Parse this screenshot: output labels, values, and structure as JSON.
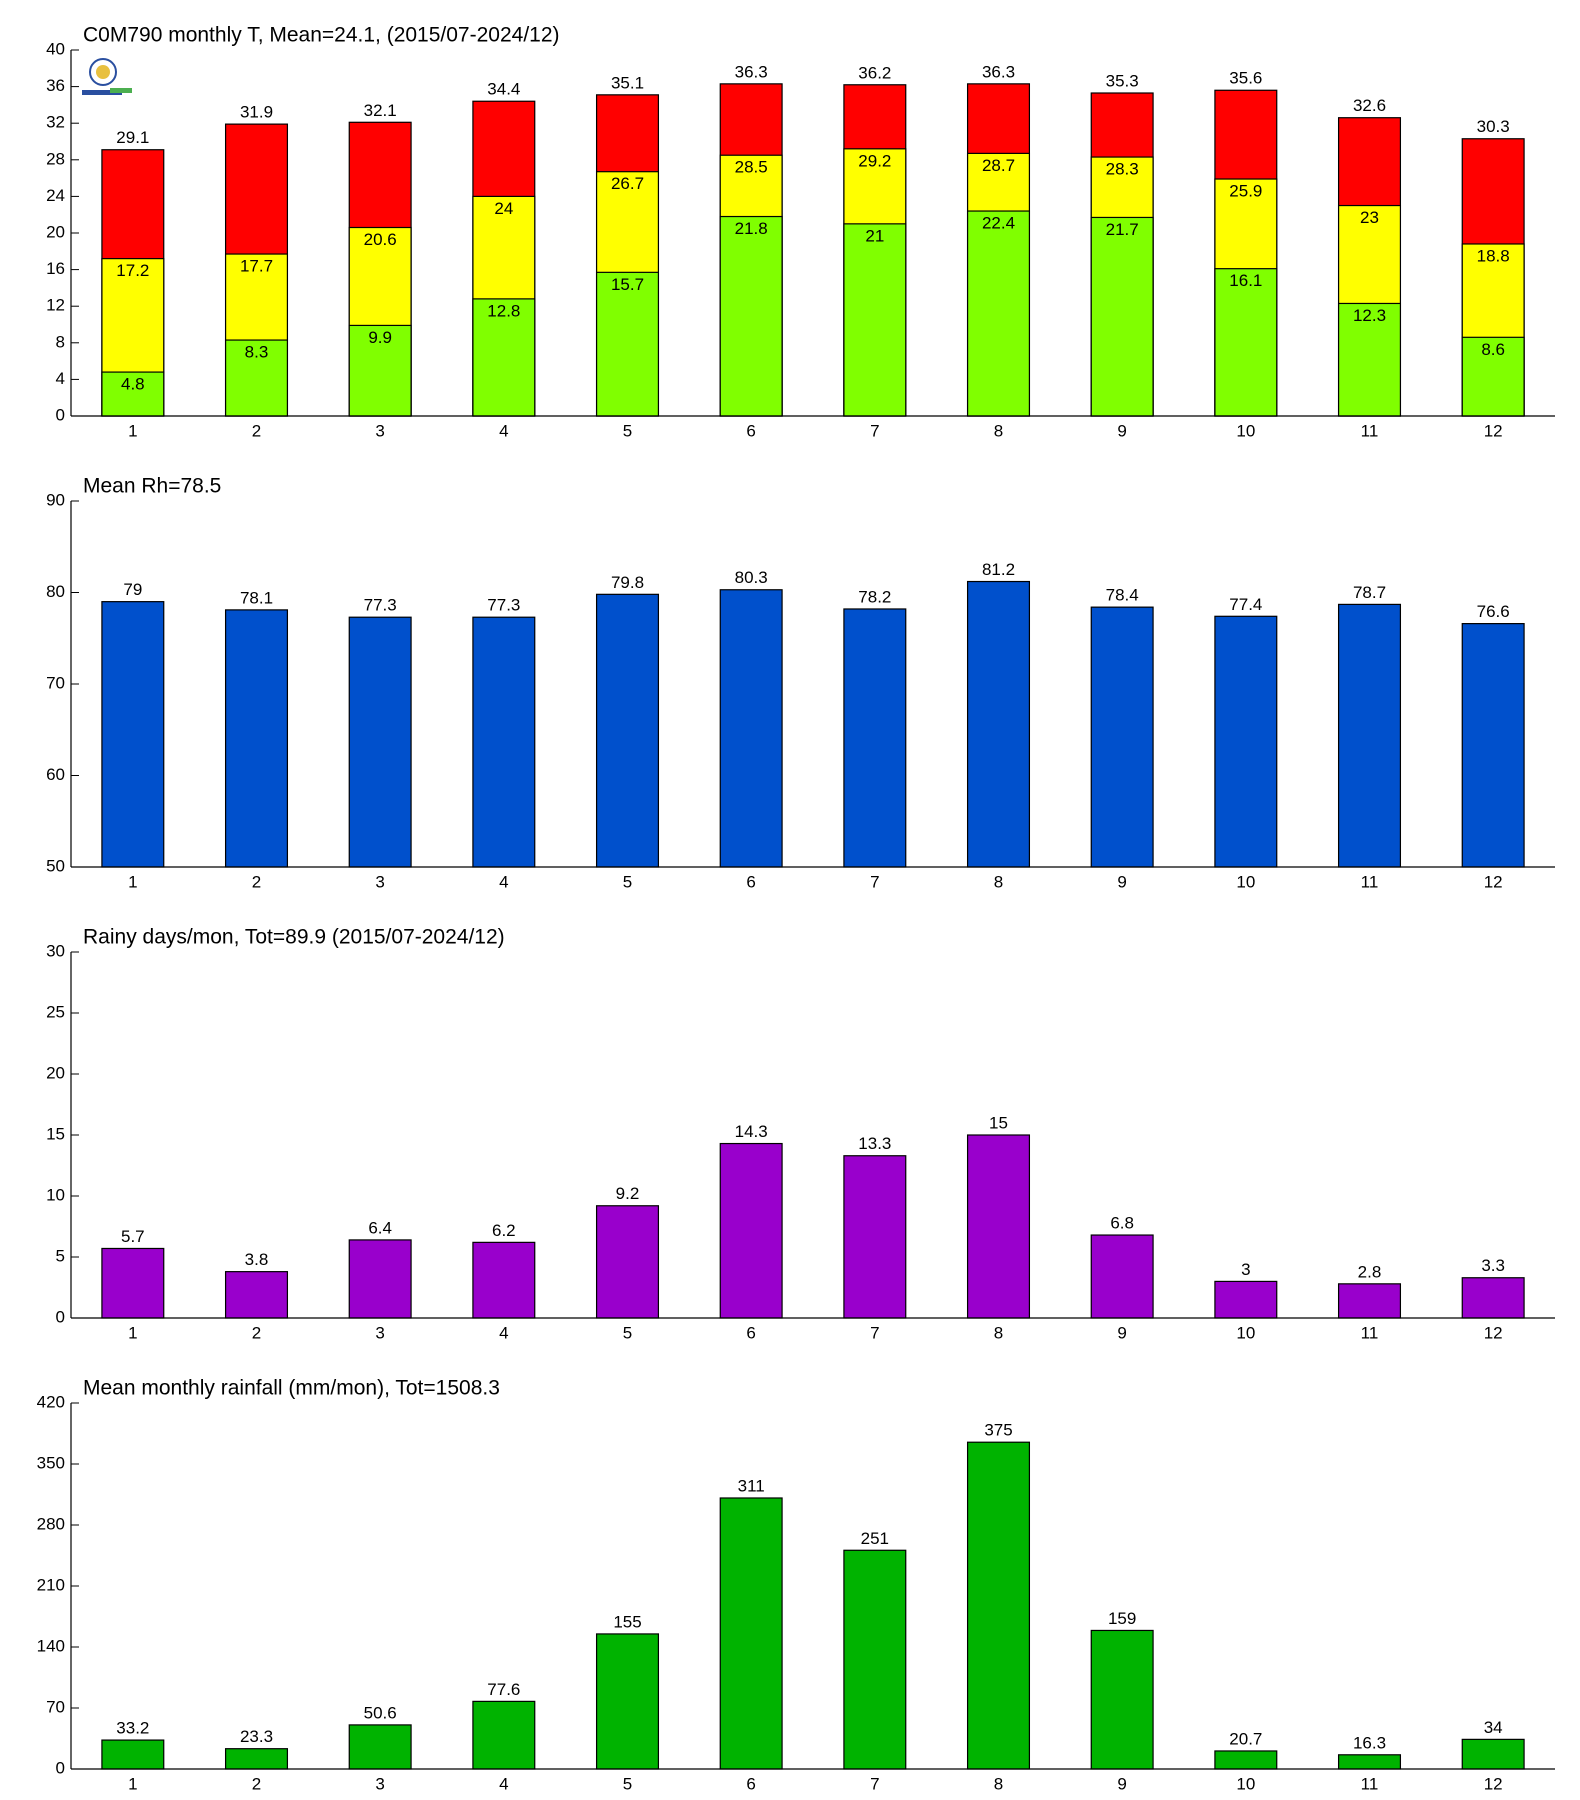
{
  "chart_data": [
    {
      "type": "bar",
      "title": "C0M790 monthly T, Mean=24.1, (2015/07-2024/12)",
      "categories": [
        1,
        2,
        3,
        4,
        5,
        6,
        7,
        8,
        9,
        10,
        11,
        12
      ],
      "series": [
        {
          "color": "#ff0000",
          "values": [
            29.1,
            31.9,
            32.1,
            34.4,
            35.1,
            36.3,
            36.2,
            36.3,
            35.3,
            35.6,
            32.6,
            30.3
          ]
        },
        {
          "color": "#ffff00",
          "values": [
            17.2,
            17.7,
            20.6,
            24,
            26.7,
            28.5,
            29.2,
            28.7,
            28.3,
            25.9,
            23,
            18.8
          ]
        },
        {
          "color": "#80ff00",
          "values": [
            4.8,
            8.3,
            9.9,
            12.8,
            15.7,
            21.8,
            21,
            22.4,
            21.7,
            16.1,
            12.3,
            8.6
          ]
        }
      ],
      "ylim": [
        0,
        40
      ],
      "yticks": [
        0,
        4,
        8,
        12,
        16,
        20,
        24,
        28,
        32,
        36,
        40
      ]
    },
    {
      "type": "bar",
      "title": "Mean Rh=78.5",
      "categories": [
        1,
        2,
        3,
        4,
        5,
        6,
        7,
        8,
        9,
        10,
        11,
        12
      ],
      "values": [
        79,
        78.1,
        77.3,
        77.3,
        79.8,
        80.3,
        78.2,
        81.2,
        78.4,
        77.4,
        78.7,
        76.6
      ],
      "color": "#0050cc",
      "ylim": [
        50,
        90
      ],
      "yticks": [
        50,
        60,
        70,
        80,
        90
      ]
    },
    {
      "type": "bar",
      "title": "Rainy days/mon, Tot=89.9 (2015/07-2024/12)",
      "categories": [
        1,
        2,
        3,
        4,
        5,
        6,
        7,
        8,
        9,
        10,
        11,
        12
      ],
      "values": [
        5.7,
        3.8,
        6.4,
        6.2,
        9.2,
        14.3,
        13.3,
        15,
        6.8,
        3,
        2.8,
        3.3
      ],
      "color": "#9900cc",
      "ylim": [
        0,
        30
      ],
      "yticks": [
        0,
        5,
        10,
        15,
        20,
        25,
        30
      ]
    },
    {
      "type": "bar",
      "title": "Mean monthly rainfall (mm/mon), Tot=1508.3",
      "categories": [
        1,
        2,
        3,
        4,
        5,
        6,
        7,
        8,
        9,
        10,
        11,
        12
      ],
      "values": [
        33.2,
        23.3,
        50.6,
        77.6,
        155,
        311,
        251,
        375,
        159,
        20.7,
        16.3,
        34
      ],
      "color": "#00b300",
      "ylim": [
        0,
        420
      ],
      "yticks": [
        0,
        70,
        140,
        210,
        280,
        350,
        420
      ]
    }
  ]
}
